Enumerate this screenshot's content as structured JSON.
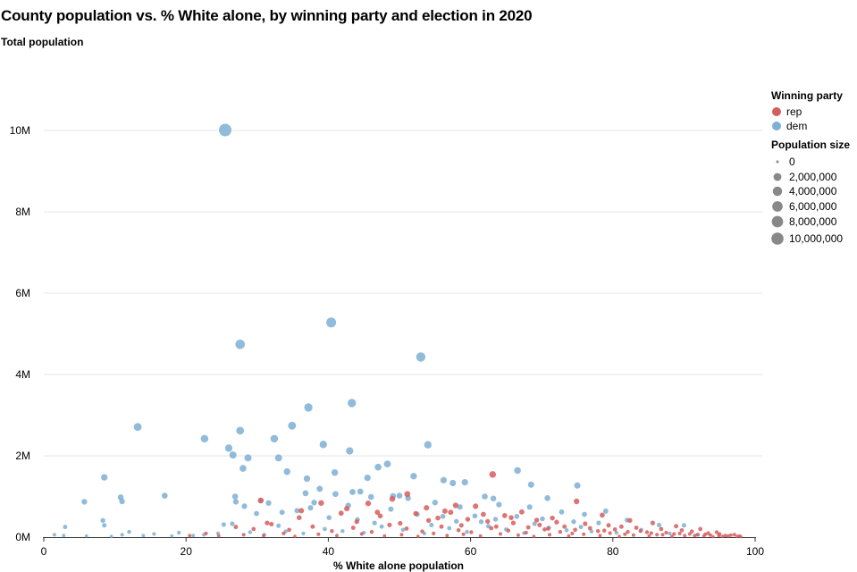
{
  "chart_data": {
    "type": "scatter",
    "title": "County population vs. % White alone, by winning party and election in 2020",
    "subtitle": "Total population",
    "xlabel": "% White alone population",
    "ylabel": "Total population",
    "xlim": [
      0,
      100
    ],
    "ylim": [
      0,
      10000000
    ],
    "x_ticks": [
      0,
      20,
      40,
      60,
      80,
      100
    ],
    "x_tick_labels": [
      "0",
      "20",
      "40",
      "60",
      "80",
      "100"
    ],
    "y_ticks": [
      0,
      2000000,
      4000000,
      6000000,
      8000000,
      10000000
    ],
    "y_tick_labels": [
      "0M",
      "2M",
      "4M",
      "6M",
      "8M",
      "10M"
    ],
    "grid": "horizontal",
    "legend_position": "right",
    "color_legend": {
      "title": "Winning party",
      "entries": [
        {
          "label": "rep",
          "color": "#d65d5d"
        },
        {
          "label": "dem",
          "color": "#7eafd4"
        }
      ]
    },
    "size_legend": {
      "title": "Population size",
      "entries": [
        {
          "label": "0",
          "value": 0
        },
        {
          "label": "2,000,000",
          "value": 2000000
        },
        {
          "label": "4,000,000",
          "value": 4000000
        },
        {
          "label": "6,000,000",
          "value": 6000000
        },
        {
          "label": "8,000,000",
          "value": 8000000
        },
        {
          "label": "10,000,000",
          "value": 10000000
        }
      ]
    },
    "series": [
      {
        "name": "dem",
        "color": "#7eafd4",
        "points": [
          [
            25.5,
            10010000
          ],
          [
            40.4,
            5280000
          ],
          [
            27.6,
            4740000
          ],
          [
            53.0,
            4430000
          ],
          [
            43.3,
            3300000
          ],
          [
            13.2,
            2710000
          ],
          [
            37.2,
            3190000
          ],
          [
            34.9,
            2740000
          ],
          [
            22.6,
            2420000
          ],
          [
            32.4,
            2420000
          ],
          [
            27.6,
            2620000
          ],
          [
            39.3,
            2280000
          ],
          [
            54.0,
            2270000
          ],
          [
            43.0,
            2120000
          ],
          [
            26.0,
            2190000
          ],
          [
            26.6,
            2020000
          ],
          [
            28.7,
            1950000
          ],
          [
            33.0,
            1950000
          ],
          [
            28.0,
            1690000
          ],
          [
            34.2,
            1610000
          ],
          [
            40.9,
            1590000
          ],
          [
            48.3,
            1800000
          ],
          [
            47.0,
            1720000
          ],
          [
            66.6,
            1640000
          ],
          [
            52.0,
            1500000
          ],
          [
            8.5,
            1470000
          ],
          [
            37.0,
            1440000
          ],
          [
            56.2,
            1400000
          ],
          [
            57.5,
            1330000
          ],
          [
            59.2,
            1350000
          ],
          [
            68.5,
            1290000
          ],
          [
            75.0,
            1270000
          ],
          [
            45.5,
            1460000
          ],
          [
            38.8,
            1190000
          ],
          [
            36.8,
            1080000
          ],
          [
            44.5,
            1120000
          ],
          [
            49.1,
            1010000
          ],
          [
            50.0,
            1020000
          ],
          [
            17.0,
            1020000
          ],
          [
            10.8,
            980000
          ],
          [
            26.9,
            1000000
          ],
          [
            43.4,
            1110000
          ],
          [
            41.0,
            1060000
          ],
          [
            30.5,
            900000
          ],
          [
            63.2,
            950000
          ],
          [
            62.0,
            1000000
          ],
          [
            70.8,
            960000
          ],
          [
            46.0,
            990000
          ],
          [
            51.2,
            960000
          ],
          [
            5.7,
            870000
          ],
          [
            11.0,
            880000
          ],
          [
            27.0,
            870000
          ],
          [
            38.0,
            850000
          ],
          [
            31.6,
            840000
          ],
          [
            28.2,
            760000
          ],
          [
            37.5,
            720000
          ],
          [
            42.8,
            780000
          ],
          [
            55.0,
            850000
          ],
          [
            58.5,
            740000
          ],
          [
            64.0,
            800000
          ],
          [
            68.3,
            740000
          ],
          [
            72.8,
            620000
          ],
          [
            76.0,
            560000
          ],
          [
            79.0,
            640000
          ],
          [
            66.5,
            510000
          ],
          [
            60.6,
            520000
          ],
          [
            52.5,
            560000
          ],
          [
            48.8,
            690000
          ],
          [
            35.6,
            650000
          ],
          [
            29.9,
            580000
          ],
          [
            25.3,
            310000
          ],
          [
            8.3,
            410000
          ],
          [
            3.0,
            250000
          ],
          [
            8.5,
            290000
          ],
          [
            33.5,
            610000
          ],
          [
            40.1,
            480000
          ],
          [
            44.1,
            430000
          ],
          [
            56.1,
            510000
          ],
          [
            61.5,
            380000
          ],
          [
            70.1,
            450000
          ],
          [
            74.5,
            380000
          ],
          [
            78.0,
            350000
          ],
          [
            82.0,
            420000
          ],
          [
            86.5,
            300000
          ],
          [
            90.0,
            290000
          ],
          [
            1.5,
            60000
          ],
          [
            2.8,
            40000
          ],
          [
            6.0,
            30000
          ],
          [
            9.5,
            20000
          ],
          [
            11.0,
            60000
          ],
          [
            14.0,
            40000
          ],
          [
            18.0,
            30000
          ],
          [
            21.0,
            40000
          ],
          [
            24.5,
            90000
          ],
          [
            29.0,
            120000
          ],
          [
            31.0,
            60000
          ],
          [
            34.0,
            140000
          ],
          [
            36.5,
            90000
          ],
          [
            39.5,
            200000
          ],
          [
            42.0,
            150000
          ],
          [
            45.0,
            110000
          ],
          [
            47.5,
            260000
          ],
          [
            50.5,
            180000
          ],
          [
            53.5,
            90000
          ],
          [
            57.0,
            220000
          ],
          [
            59.5,
            130000
          ],
          [
            62.5,
            270000
          ],
          [
            65.0,
            190000
          ],
          [
            67.5,
            100000
          ],
          [
            71.0,
            230000
          ],
          [
            73.5,
            170000
          ],
          [
            77.0,
            140000
          ],
          [
            80.5,
            110000
          ],
          [
            84.0,
            180000
          ],
          [
            88.0,
            90000
          ],
          [
            92.0,
            60000
          ],
          [
            12.0,
            130000
          ],
          [
            15.5,
            80000
          ],
          [
            19.0,
            110000
          ],
          [
            22.5,
            60000
          ],
          [
            26.5,
            330000
          ],
          [
            33.0,
            280000
          ],
          [
            46.5,
            350000
          ],
          [
            54.5,
            300000
          ],
          [
            58.0,
            390000
          ],
          [
            63.5,
            440000
          ],
          [
            69.0,
            330000
          ],
          [
            75.5,
            250000
          ]
        ]
      },
      {
        "name": "rep",
        "color": "#d65d5d",
        "points": [
          [
            63.1,
            1540000
          ],
          [
            30.5,
            900000
          ],
          [
            74.9,
            880000
          ],
          [
            51.1,
            1060000
          ],
          [
            49.0,
            940000
          ],
          [
            53.8,
            720000
          ],
          [
            57.9,
            780000
          ],
          [
            60.7,
            760000
          ],
          [
            45.6,
            830000
          ],
          [
            39.0,
            840000
          ],
          [
            78.5,
            540000
          ],
          [
            67.2,
            620000
          ],
          [
            64.8,
            530000
          ],
          [
            71.5,
            470000
          ],
          [
            82.4,
            410000
          ],
          [
            85.6,
            350000
          ],
          [
            88.9,
            270000
          ],
          [
            92.3,
            200000
          ],
          [
            94.6,
            120000
          ],
          [
            97.1,
            60000
          ],
          [
            36.2,
            650000
          ],
          [
            41.8,
            590000
          ],
          [
            47.3,
            520000
          ],
          [
            55.4,
            470000
          ],
          [
            59.6,
            440000
          ],
          [
            62.4,
            390000
          ],
          [
            66.0,
            350000
          ],
          [
            69.7,
            300000
          ],
          [
            73.2,
            260000
          ],
          [
            76.8,
            220000
          ],
          [
            80.3,
            190000
          ],
          [
            83.9,
            150000
          ],
          [
            87.5,
            110000
          ],
          [
            90.8,
            80000
          ],
          [
            93.7,
            50000
          ],
          [
            96.2,
            30000
          ],
          [
            27.0,
            250000
          ],
          [
            29.5,
            200000
          ],
          [
            32.0,
            320000
          ],
          [
            34.5,
            180000
          ],
          [
            37.8,
            260000
          ],
          [
            40.5,
            150000
          ],
          [
            43.5,
            230000
          ],
          [
            46.1,
            130000
          ],
          [
            48.6,
            300000
          ],
          [
            51.0,
            210000
          ],
          [
            53.2,
            140000
          ],
          [
            55.9,
            260000
          ],
          [
            58.3,
            170000
          ],
          [
            60.1,
            120000
          ],
          [
            62.9,
            220000
          ],
          [
            65.3,
            160000
          ],
          [
            67.8,
            110000
          ],
          [
            70.4,
            190000
          ],
          [
            72.6,
            130000
          ],
          [
            74.3,
            90000
          ],
          [
            77.9,
            150000
          ],
          [
            79.6,
            100000
          ],
          [
            81.7,
            70000
          ],
          [
            84.8,
            120000
          ],
          [
            86.2,
            60000
          ],
          [
            89.4,
            90000
          ],
          [
            91.5,
            40000
          ],
          [
            93.0,
            70000
          ],
          [
            95.4,
            20000
          ],
          [
            98.0,
            10000
          ],
          [
            20.5,
            40000
          ],
          [
            22.8,
            90000
          ],
          [
            24.6,
            30000
          ],
          [
            28.1,
            60000
          ],
          [
            30.9,
            40000
          ],
          [
            33.7,
            90000
          ],
          [
            35.3,
            20000
          ],
          [
            38.6,
            70000
          ],
          [
            41.2,
            40000
          ],
          [
            44.7,
            80000
          ],
          [
            47.9,
            30000
          ],
          [
            50.3,
            60000
          ],
          [
            52.6,
            20000
          ],
          [
            54.8,
            90000
          ],
          [
            56.7,
            40000
          ],
          [
            59.0,
            70000
          ],
          [
            61.4,
            30000
          ],
          [
            64.2,
            80000
          ],
          [
            66.7,
            50000
          ],
          [
            68.9,
            20000
          ],
          [
            71.1,
            60000
          ],
          [
            73.8,
            30000
          ],
          [
            75.9,
            70000
          ],
          [
            78.2,
            40000
          ],
          [
            80.9,
            20000
          ],
          [
            82.9,
            50000
          ],
          [
            85.1,
            30000
          ],
          [
            87.0,
            60000
          ],
          [
            88.3,
            20000
          ],
          [
            90.1,
            40000
          ],
          [
            92.8,
            30000
          ],
          [
            94.1,
            10000
          ],
          [
            95.8,
            40000
          ],
          [
            97.5,
            20000
          ],
          [
            57.2,
            610000
          ],
          [
            61.8,
            560000
          ],
          [
            65.7,
            480000
          ],
          [
            69.3,
            420000
          ],
          [
            72.1,
            370000
          ],
          [
            76.1,
            330000
          ],
          [
            79.4,
            290000
          ],
          [
            81.2,
            260000
          ],
          [
            83.3,
            230000
          ],
          [
            86.8,
            200000
          ],
          [
            89.7,
            170000
          ],
          [
            91.1,
            140000
          ],
          [
            93.4,
            100000
          ],
          [
            95.0,
            80000
          ],
          [
            96.6,
            50000
          ],
          [
            44.0,
            380000
          ],
          [
            50.1,
            340000
          ],
          [
            54.1,
            410000
          ],
          [
            58.7,
            290000
          ],
          [
            63.6,
            260000
          ],
          [
            68.1,
            240000
          ],
          [
            70.9,
            210000
          ],
          [
            74.7,
            180000
          ],
          [
            78.8,
            160000
          ],
          [
            82.1,
            130000
          ],
          [
            85.4,
            100000
          ],
          [
            88.6,
            80000
          ],
          [
            91.9,
            60000
          ],
          [
            94.9,
            40000
          ],
          [
            97.8,
            30000
          ],
          [
            35.9,
            480000
          ],
          [
            31.4,
            350000
          ],
          [
            42.6,
            700000
          ],
          [
            46.9,
            610000
          ],
          [
            52.3,
            580000
          ],
          [
            56.4,
            640000
          ]
        ]
      }
    ]
  }
}
